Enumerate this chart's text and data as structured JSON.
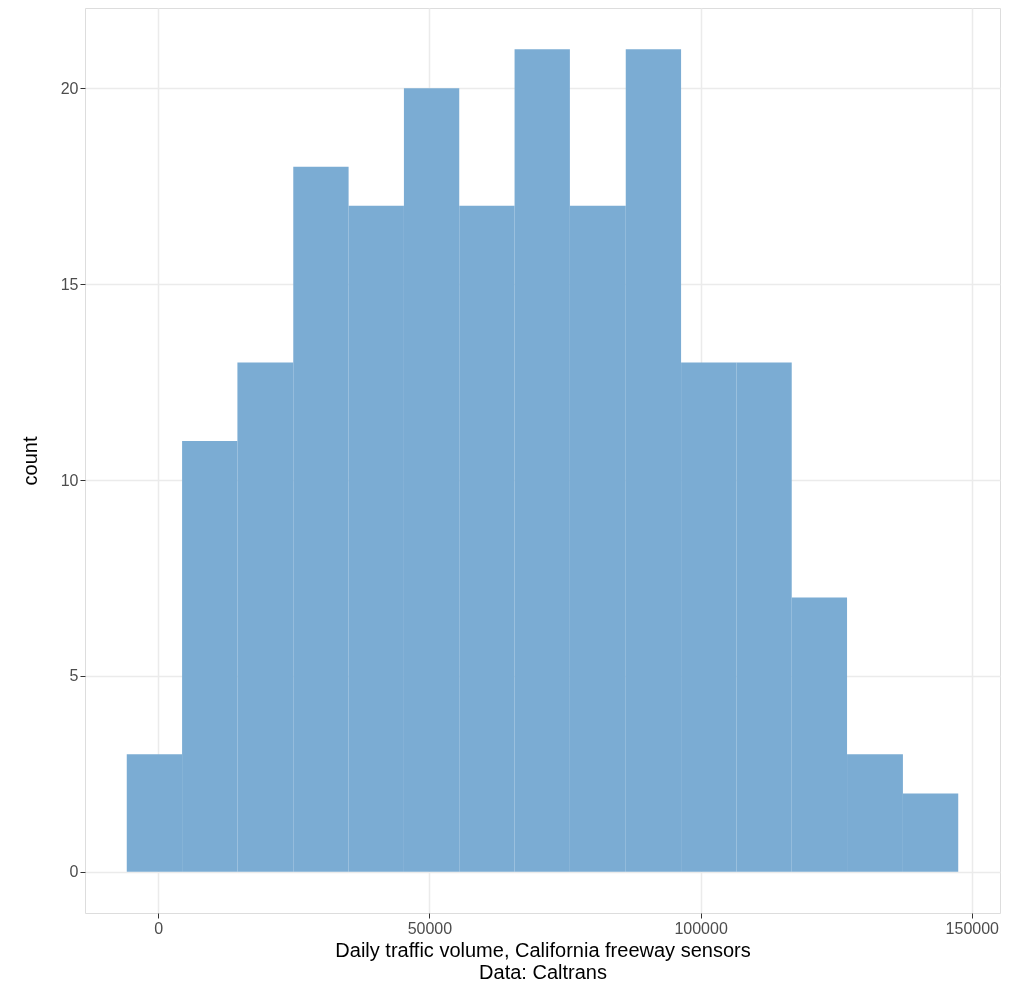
{
  "chart_data": {
    "type": "histogram",
    "xlabel": "Daily traffic volume, California freeway sensors",
    "ylabel": "count",
    "annotations": [
      "Data: Caltrans"
    ],
    "bins": [
      -5800,
      4400,
      14600,
      24900,
      35100,
      45300,
      55500,
      65700,
      75900,
      86200,
      96400,
      106600,
      116800,
      127000,
      137300,
      147500
    ],
    "values": [
      3,
      11,
      13,
      18,
      17,
      20,
      17,
      21,
      17,
      21,
      13,
      13,
      7,
      3,
      2
    ],
    "color": "#7bacd3",
    "xlim": [
      -13500,
      155200
    ],
    "xticks": [
      0,
      50000,
      100000,
      150000
    ],
    "ylim": [
      -1.05,
      22.05
    ],
    "yticks": [
      0,
      5,
      10,
      15,
      20
    ],
    "grid": true
  }
}
